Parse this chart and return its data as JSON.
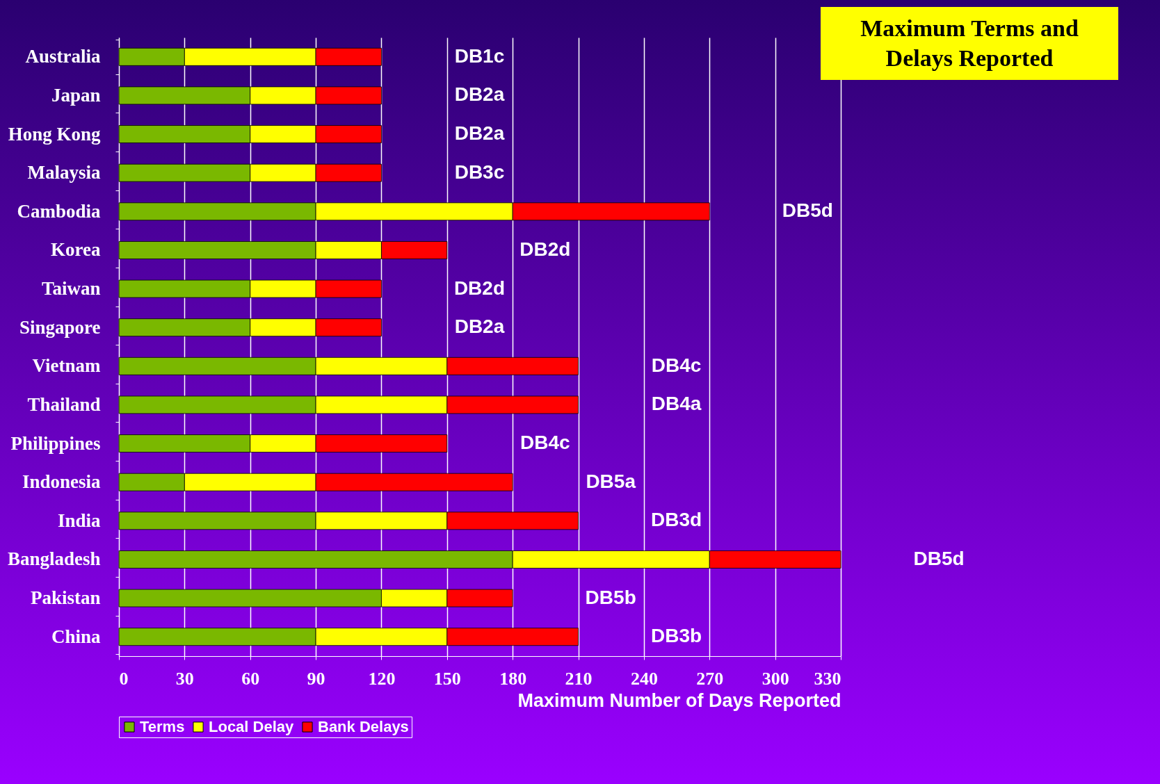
{
  "chart_data": {
    "type": "bar",
    "orientation": "horizontal",
    "stacked": true,
    "title": "Maximum Terms and Delays Reported",
    "xlabel": "Maximum Number of Days Reported",
    "categories": [
      "Australia",
      "Japan",
      "Hong Kong",
      "Malaysia",
      "Cambodia",
      "Korea",
      "Taiwan",
      "Singapore",
      "Vietnam",
      "Thailand",
      "Philippines",
      "Indonesia",
      "India",
      "Bangladesh",
      "Pakistan",
      "China"
    ],
    "series": [
      {
        "name": "Terms",
        "color": "#7ab800",
        "values": [
          30,
          60,
          60,
          60,
          90,
          90,
          60,
          60,
          90,
          90,
          60,
          30,
          90,
          180,
          120,
          90
        ]
      },
      {
        "name": "Local Delay",
        "color": "#ffff00",
        "values": [
          60,
          30,
          30,
          30,
          90,
          30,
          30,
          30,
          60,
          60,
          30,
          60,
          60,
          90,
          30,
          60
        ]
      },
      {
        "name": "Bank Delays",
        "color": "#ff0000",
        "values": [
          30,
          30,
          30,
          30,
          90,
          30,
          30,
          30,
          60,
          60,
          60,
          90,
          60,
          60,
          30,
          60
        ]
      }
    ],
    "xlim": [
      0,
      330
    ],
    "xticks": [
      0,
      30,
      60,
      90,
      120,
      150,
      180,
      210,
      240,
      270,
      300,
      330
    ],
    "grid": "x",
    "legend": "bottom",
    "annotations": [
      "DB1c",
      "DB2a",
      "DB2a",
      "DB3c",
      "DB5d",
      "DB2d",
      "DB2d",
      "DB2a",
      "DB4c",
      "DB4a",
      "DB4c",
      "DB5a",
      "DB3d",
      "DB5d",
      "DB5b",
      "DB3b"
    ]
  }
}
